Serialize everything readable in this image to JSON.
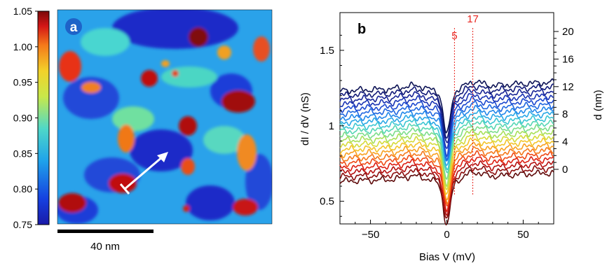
{
  "panel_a": {
    "label": "a",
    "colorbar_ticks": [
      "1.05",
      "1.00",
      "0.95",
      "0.90",
      "0.85",
      "0.80",
      "0.75"
    ],
    "colorbar_values": [
      1.05,
      1.0,
      0.95,
      0.9,
      0.85,
      0.8,
      0.75
    ],
    "colorbar_range": [
      0.75,
      1.05
    ],
    "scalebar_label": "40 nm"
  },
  "panel_b": {
    "label": "b",
    "ylabel_main": "dI / dV (nS)",
    "xlabel_main": "Bias V (mV)",
    "right_ylabel": "d (nm)",
    "marker_labels": [
      "5",
      "17"
    ],
    "marker_color": "#e8251f"
  },
  "chart_data": {
    "type": "line",
    "xlabel": "Bias V (mV)",
    "ylabel": "dI / dV (nS)",
    "xlim": [
      -70,
      70
    ],
    "ylim": [
      0.35,
      1.75
    ],
    "xticks": [
      -50,
      0,
      50
    ],
    "xtick_labels": [
      "−50",
      "0",
      "50"
    ],
    "yticks": [
      0.5,
      1,
      1.5
    ],
    "ytick_labels": [
      "0.5",
      "1",
      "1.5"
    ],
    "right_axis": {
      "label": "d (nm)",
      "ticks": [
        0,
        4,
        8,
        12,
        16,
        20
      ],
      "tick_labels": [
        "0",
        "4",
        "8",
        "12",
        "16",
        "20"
      ],
      "minor_step": 1
    },
    "vertical_markers": [
      {
        "x": 5,
        "label": "5"
      },
      {
        "x": 17,
        "label": "17"
      }
    ],
    "curve_count": 21,
    "curve_baseline_offsets": [
      0.66,
      0.69,
      0.72,
      0.75,
      0.78,
      0.81,
      0.84,
      0.87,
      0.9,
      0.93,
      0.96,
      0.99,
      1.02,
      1.05,
      1.08,
      1.11,
      1.14,
      1.17,
      1.2,
      1.23,
      1.26
    ],
    "curve_colors": [
      "#5e0a0a",
      "#8b0d0d",
      "#b50f0f",
      "#dd1e12",
      "#ef4a16",
      "#f5781b",
      "#f8a021",
      "#f3c42a",
      "#d6da3a",
      "#a8e05a",
      "#7cdd8a",
      "#55d6b4",
      "#3bc6d3",
      "#2aa8e6",
      "#2187ea",
      "#1e66e0",
      "#1c48cf",
      "#1a33b4",
      "#172496",
      "#121a78",
      "#0c1254"
    ],
    "dip_depth": 0.28,
    "peak_positions": [
      -20,
      17
    ],
    "scalebar": {
      "length_nm": 40
    }
  }
}
